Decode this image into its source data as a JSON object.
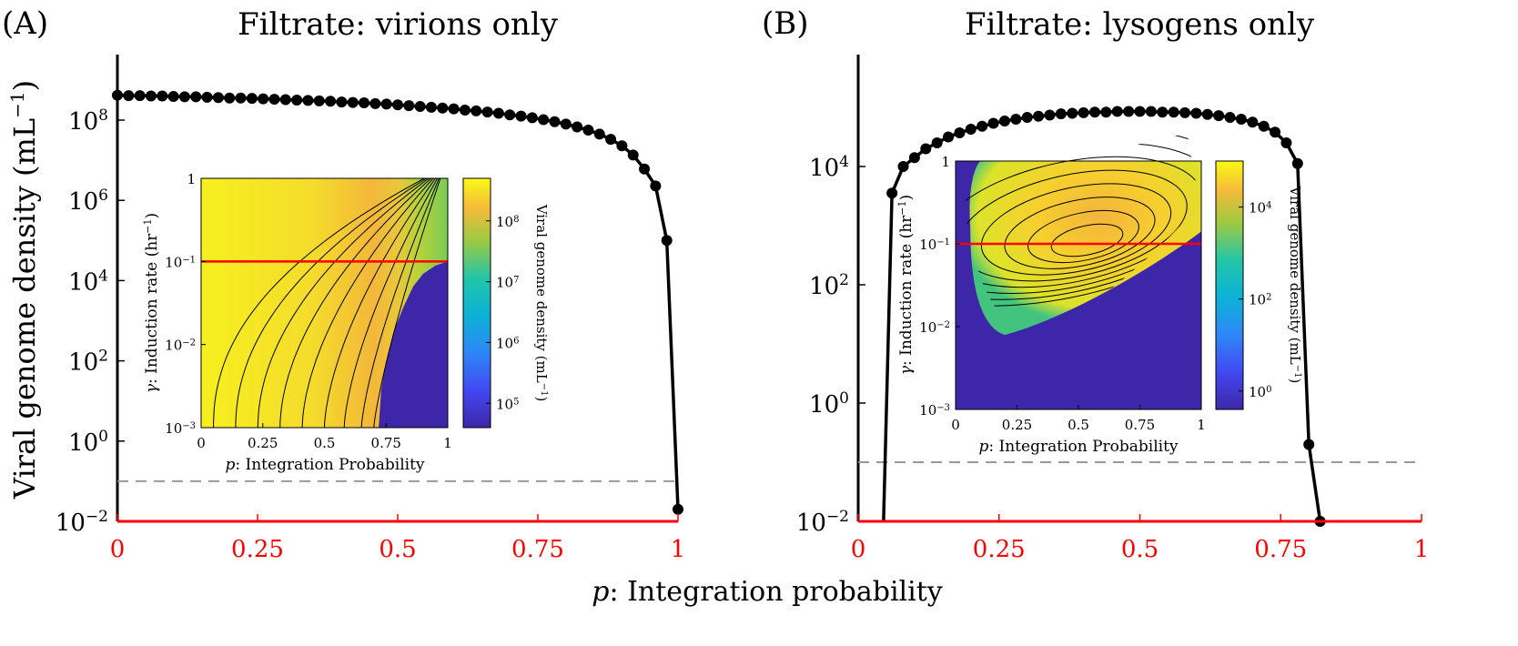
{
  "figure": {
    "shared_xlabel_var": "p",
    "shared_xlabel_text": ": Integration probability",
    "shared_ylabel_main": "Viral genome density (mL",
    "shared_ylabel_sup": "−1",
    "shared_ylabel_close": ")"
  },
  "panels": [
    {
      "letter": "(A)",
      "title": "Filtrate: virions only",
      "inset": {
        "xlabel_var": "p",
        "xlabel_text": ": Integration Probability",
        "ylabel_var": "γ",
        "ylabel_text": ": Induction rate (hr",
        "ylabel_sup": "−1",
        "ylabel_close": ")",
        "colorbar_label": "Viral genome density (mL",
        "colorbar_sup": "−1",
        "colorbar_close": ")"
      }
    },
    {
      "letter": "(B)",
      "title": "Filtrate: lysogens only",
      "inset": {
        "xlabel_var": "p",
        "xlabel_text": ": Integration Probability",
        "ylabel_var": "γ",
        "ylabel_text": ": Induction rate (hr",
        "ylabel_sup": "−1",
        "ylabel_close": ")",
        "colorbar_label": "Viral genome density (mL",
        "colorbar_sup": "−1",
        "colorbar_close": ")"
      }
    }
  ],
  "colors": {
    "curve": "#000000",
    "x_axis": "#ff0000",
    "threshold": "#999999",
    "inset_line": "#ff0000",
    "heat_low": "#3e26a8",
    "heat_mid": "#23c5a8",
    "heat_high": "#f9fb15"
  },
  "chart_data": [
    {
      "type": "line",
      "panel": "A",
      "title": "Filtrate: virions only",
      "xlabel": "p: Integration probability",
      "ylabel": "Viral genome density (mL−1)",
      "xlim": [
        0,
        1
      ],
      "ylim_log10": [
        -2,
        10
      ],
      "yscale": "log",
      "xticks": [
        "0",
        "0.25",
        "0.5",
        "0.75",
        "1"
      ],
      "yticks": [
        {
          "base": "10",
          "exp": "−2",
          "log10": -2
        },
        {
          "base": "10",
          "exp": "0",
          "log10": 0
        },
        {
          "base": "10",
          "exp": "2",
          "log10": 2
        },
        {
          "base": "10",
          "exp": "4",
          "log10": 4
        },
        {
          "base": "10",
          "exp": "6",
          "log10": 6
        },
        {
          "base": "10",
          "exp": "8",
          "log10": 8
        }
      ],
      "threshold_log10": -1,
      "series": [
        {
          "x": [
            0,
            0.02,
            0.04,
            0.06,
            0.08,
            0.1,
            0.12,
            0.14,
            0.16,
            0.18,
            0.2,
            0.22,
            0.24,
            0.26,
            0.28,
            0.3,
            0.32,
            0.34,
            0.36,
            0.38,
            0.4,
            0.42,
            0.44,
            0.46,
            0.48,
            0.5,
            0.52,
            0.54,
            0.56,
            0.58,
            0.6,
            0.62,
            0.64,
            0.66,
            0.68,
            0.7,
            0.72,
            0.74,
            0.76,
            0.78,
            0.8,
            0.82,
            0.84,
            0.86,
            0.88,
            0.9,
            0.92,
            0.94,
            0.96,
            0.98,
            1.0
          ],
          "y_log10": [
            8.62,
            8.61,
            8.61,
            8.6,
            8.6,
            8.59,
            8.58,
            8.58,
            8.57,
            8.56,
            8.55,
            8.55,
            8.54,
            8.53,
            8.52,
            8.51,
            8.5,
            8.49,
            8.48,
            8.47,
            8.45,
            8.44,
            8.43,
            8.41,
            8.4,
            8.38,
            8.36,
            8.34,
            8.32,
            8.3,
            8.28,
            8.25,
            8.23,
            8.2,
            8.17,
            8.13,
            8.1,
            8.06,
            8.01,
            7.96,
            7.9,
            7.83,
            7.75,
            7.65,
            7.52,
            7.36,
            7.13,
            6.78,
            6.36,
            5.0,
            -1.7
          ]
        }
      ],
      "inset": {
        "type": "heatmap",
        "xlabel": "p: Integration Probability",
        "ylabel": "γ: Induction rate (hr−1)",
        "xlim": [
          0,
          1
        ],
        "ylim_log10": [
          -3,
          0
        ],
        "xticks": [
          "0",
          "0.25",
          "0.5",
          "0.75",
          "1"
        ],
        "yticks": [
          {
            "base": "10",
            "exp": "−3",
            "log10": -3
          },
          {
            "base": "10",
            "exp": "−2",
            "log10": -2
          },
          {
            "base": "10",
            "exp": "−1",
            "log10": -1
          },
          {
            "base": "",
            "exp": "",
            "text": "1",
            "log10": 0
          }
        ],
        "colorbar_ticks": [
          {
            "base": "10",
            "exp": "5",
            "log10": 5
          },
          {
            "base": "10",
            "exp": "6",
            "log10": 6
          },
          {
            "base": "10",
            "exp": "7",
            "log10": 7
          },
          {
            "base": "10",
            "exp": "8",
            "log10": 8
          }
        ],
        "color_range_log10": [
          4.6,
          8.7
        ],
        "red_line_log10": -1,
        "boundary": [
          {
            "p": 0.72,
            "log10g": -3.0
          },
          {
            "p": 0.73,
            "log10g": -2.55
          },
          {
            "p": 0.75,
            "log10g": -2.2
          },
          {
            "p": 0.78,
            "log10g": -1.85
          },
          {
            "p": 0.82,
            "log10g": -1.55
          },
          {
            "p": 0.86,
            "log10g": -1.3
          },
          {
            "p": 0.9,
            "log10g": -1.15
          },
          {
            "p": 0.95,
            "log10g": -1.05
          },
          {
            "p": 1.0,
            "log10g": -1.0
          }
        ]
      }
    },
    {
      "type": "line",
      "panel": "B",
      "title": "Filtrate: lysogens only",
      "xlabel": "p: Integration probability",
      "ylabel": "Viral genome density (mL−1)",
      "xlim": [
        0,
        1
      ],
      "ylim_log10": [
        -2,
        6
      ],
      "yscale": "log",
      "xticks": [
        "0",
        "0.25",
        "0.5",
        "0.75",
        "1"
      ],
      "yticks": [
        {
          "base": "10",
          "exp": "−2",
          "log10": -2
        },
        {
          "base": "10",
          "exp": "0",
          "log10": 0
        },
        {
          "base": "10",
          "exp": "2",
          "log10": 2
        },
        {
          "base": "10",
          "exp": "4",
          "log10": 4
        }
      ],
      "threshold_log10": -1,
      "series": [
        {
          "x": [
            0.045,
            0.06,
            0.08,
            0.1,
            0.12,
            0.14,
            0.16,
            0.18,
            0.2,
            0.22,
            0.24,
            0.26,
            0.28,
            0.3,
            0.32,
            0.34,
            0.36,
            0.38,
            0.4,
            0.42,
            0.44,
            0.46,
            0.48,
            0.5,
            0.52,
            0.54,
            0.56,
            0.58,
            0.6,
            0.62,
            0.64,
            0.66,
            0.68,
            0.7,
            0.72,
            0.74,
            0.76,
            0.78,
            0.8,
            0.82
          ],
          "y_log10": [
            -2.0,
            3.55,
            4.0,
            4.15,
            4.3,
            4.4,
            4.5,
            4.57,
            4.63,
            4.68,
            4.73,
            4.77,
            4.8,
            4.83,
            4.85,
            4.87,
            4.89,
            4.9,
            4.91,
            4.92,
            4.92,
            4.93,
            4.93,
            4.93,
            4.93,
            4.92,
            4.92,
            4.91,
            4.9,
            4.88,
            4.86,
            4.83,
            4.8,
            4.75,
            4.68,
            4.58,
            4.4,
            4.05,
            -0.7,
            -2.0
          ]
        }
      ],
      "inset": {
        "type": "heatmap",
        "xlabel": "p: Integration Probability",
        "ylabel": "γ: Induction rate (hr−1)",
        "xlim": [
          0,
          1
        ],
        "ylim_log10": [
          -3,
          0
        ],
        "xticks": [
          "0",
          "0.25",
          "0.5",
          "0.75",
          "1"
        ],
        "yticks": [
          {
            "base": "10",
            "exp": "−3",
            "log10": -3
          },
          {
            "base": "10",
            "exp": "−2",
            "log10": -2
          },
          {
            "base": "10",
            "exp": "−1",
            "log10": -1
          },
          {
            "base": "",
            "exp": "",
            "text": "1",
            "log10": 0
          }
        ],
        "colorbar_ticks": [
          {
            "base": "10",
            "exp": "0",
            "log10": 0
          },
          {
            "base": "10",
            "exp": "2",
            "log10": 2
          },
          {
            "base": "10",
            "exp": "4",
            "log10": 4
          }
        ],
        "color_range_log10": [
          -0.4,
          5.0
        ],
        "red_line_log10": -1.0,
        "peak": {
          "p": 0.55,
          "log10g": -1.0
        }
      }
    }
  ]
}
